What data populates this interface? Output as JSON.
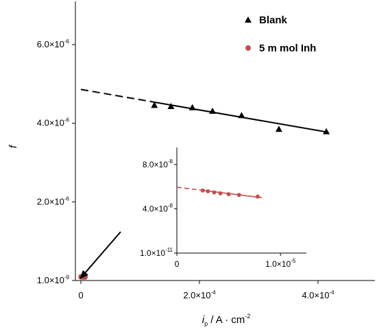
{
  "chart_data": [
    {
      "type": "scatter",
      "title": "",
      "xlabel": {
        "main": "i",
        "sub": "p",
        "rest": " / A · cm",
        "sup": "-2"
      },
      "ylabel": "f",
      "x_ticks": [
        {
          "value": 0,
          "text": "0"
        },
        {
          "value": 0.0002,
          "mant": "2.0×10",
          "exp": "-4"
        },
        {
          "value": 0.0004,
          "mant": "4.0×10",
          "exp": "-4"
        }
      ],
      "y_ticks": [
        {
          "value": 1e-09,
          "mant": "1.0×10",
          "exp": "-9"
        },
        {
          "value": 2e-06,
          "mant": "2.0×10",
          "exp": "-6"
        },
        {
          "value": 4e-06,
          "mant": "4.0×10",
          "exp": "-6"
        },
        {
          "value": 6e-06,
          "mant": "6.0×10",
          "exp": "-6"
        }
      ],
      "xlim": [
        0,
        0.000496
      ],
      "ylim": [
        0,
        7.1e-06
      ],
      "grid": false,
      "legend_position": "top-right",
      "series": [
        {
          "name": "Blank",
          "marker": "triangle",
          "color": "#000000",
          "points": [
            [
              0.000124,
              4.46e-06
            ],
            [
              0.000152,
              4.43e-06
            ],
            [
              0.000188,
              4.4e-06
            ],
            [
              0.000222,
              4.31e-06
            ],
            [
              0.000271,
              4.2e-06
            ],
            [
              0.000334,
              3.85e-06
            ],
            [
              0.000414,
              3.79e-06
            ]
          ],
          "fit": {
            "intercept": 4.86e-06,
            "slope": -0.00261,
            "solid_from": 0.000124,
            "solid_to": 0.000414
          }
        },
        {
          "name": "5 m mol Inh",
          "marker": "circle",
          "color": "#c0504d",
          "points": [
            [
              1e-07,
              5.75e-08
            ],
            [
              1e-06,
              5.7e-08
            ],
            [
              2e-06,
              5.65e-08
            ],
            [
              3e-06,
              5.6e-08
            ],
            [
              5e-06,
              5.5e-08
            ],
            [
              7e-06,
              5.3e-08
            ]
          ]
        }
      ]
    },
    {
      "type": "scatter",
      "title": "",
      "xlabel": "",
      "ylabel": "",
      "x_ticks": [
        {
          "value": 0,
          "text": "0"
        },
        {
          "value": 1e-05,
          "mant": "1.0×10",
          "exp": "-5"
        }
      ],
      "y_ticks": [
        {
          "value": 1e-11,
          "mant": "1.0×10",
          "exp": "-11"
        },
        {
          "value": 4e-08,
          "mant": "4.0×10",
          "exp": "-8"
        },
        {
          "value": 8e-08,
          "mant": "8.0×10",
          "exp": "-8"
        }
      ],
      "xlim": [
        0,
        1.25e-05
      ],
      "ylim": [
        1e-11,
        9.54e-08
      ],
      "grid": false,
      "series": [
        {
          "name": "5 m mol Inh",
          "marker": "circle",
          "color": "#c0504d",
          "points": [
            [
              2.5e-06,
              5.65e-08
            ],
            [
              3e-06,
              5.58e-08
            ],
            [
              3.6e-06,
              5.48e-08
            ],
            [
              4.2e-06,
              5.4e-08
            ],
            [
              5e-06,
              5.32e-08
            ],
            [
              6e-06,
              5.25e-08
            ],
            [
              7.8e-06,
              5.1e-08
            ]
          ],
          "fit": {
            "intercept": 5.95e-08,
            "slope": -0.00115,
            "solid_from": 2.5e-06,
            "solid_to": 8.2e-06
          }
        }
      ]
    }
  ]
}
